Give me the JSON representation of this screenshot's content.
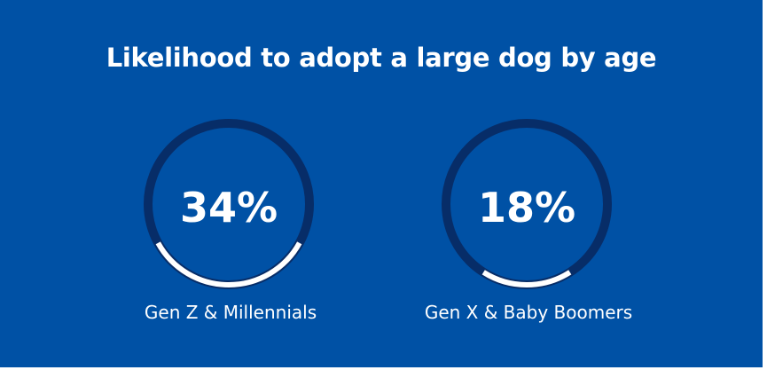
{
  "title": "Likelihood to adopt a large dog by age",
  "colors": {
    "background": "#0051a5",
    "ring_track": "#072d68",
    "ring_fill": "#ffffff",
    "text": "#ffffff"
  },
  "chart_data": {
    "type": "donut",
    "title": "Likelihood to adopt a large dog by age",
    "unit": "%",
    "series": [
      {
        "name": "Gen Z & Millennials",
        "value": 34,
        "label": "34%"
      },
      {
        "name": "Gen X & Baby Boomers",
        "value": 18,
        "label": "18%"
      }
    ]
  }
}
